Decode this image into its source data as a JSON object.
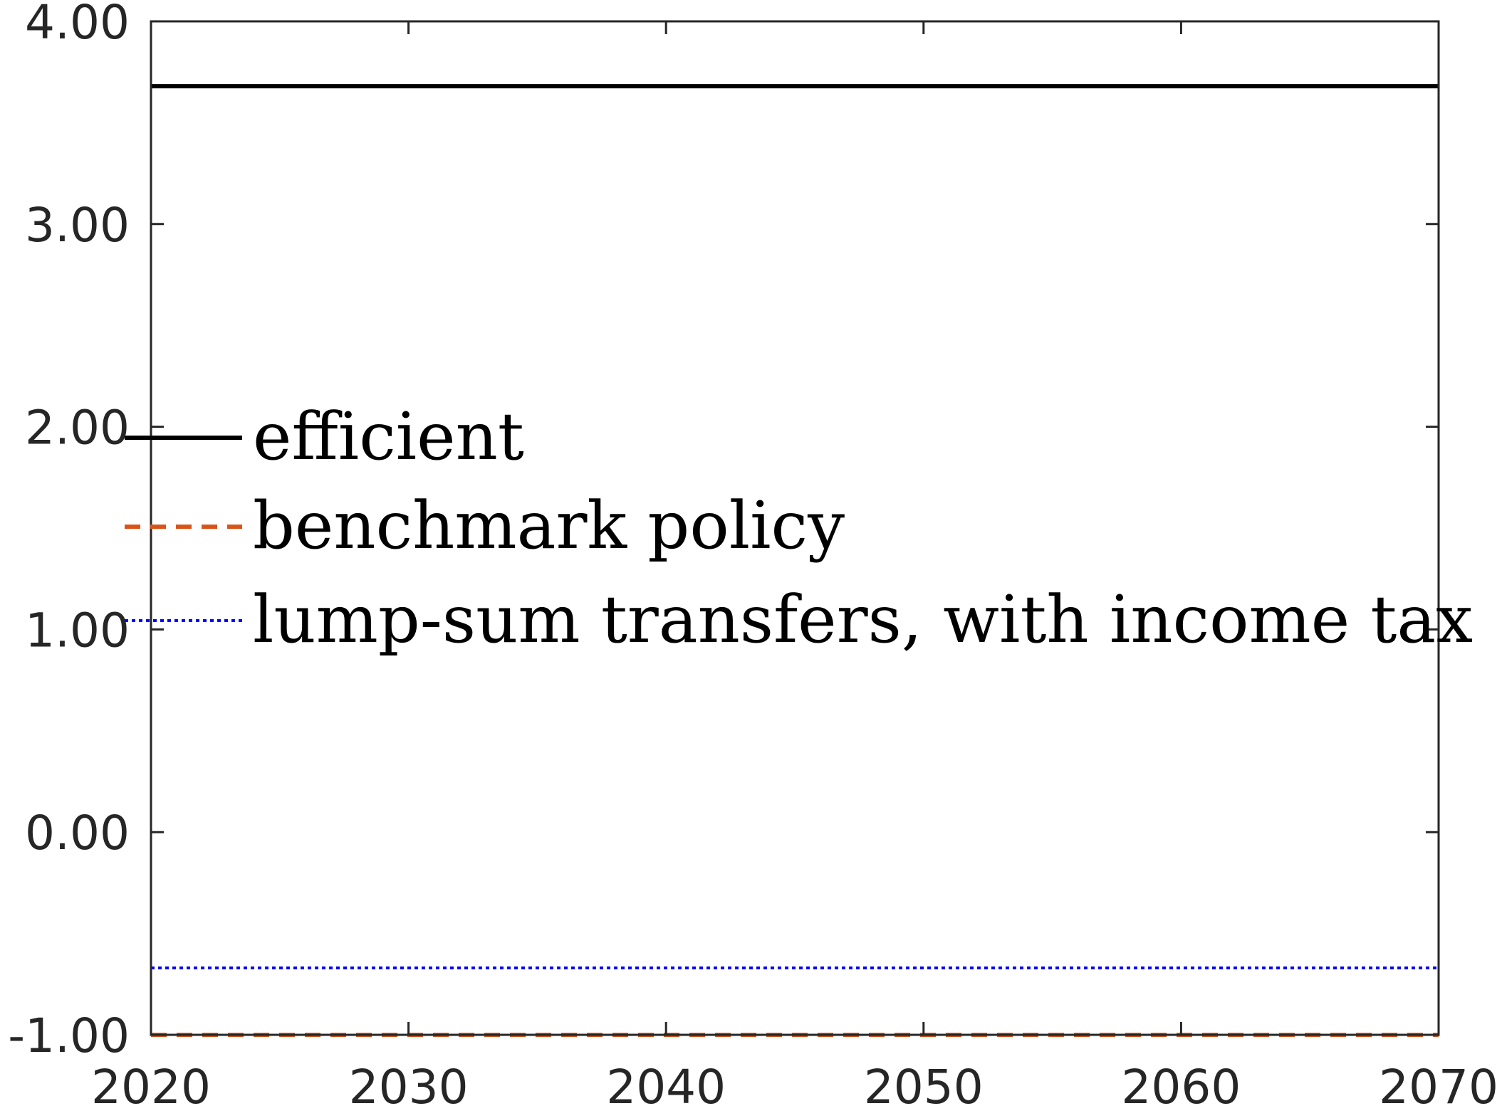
{
  "chart_data": {
    "type": "line",
    "title": "",
    "xlabel": "",
    "ylabel": "",
    "xlim": [
      2020,
      2070
    ],
    "ylim": [
      -1.0,
      4.0
    ],
    "x_ticks": [
      "2020",
      "2030",
      "2040",
      "2050",
      "2060",
      "2070"
    ],
    "y_ticks": [
      "4.00",
      "3.00",
      "2.00",
      "1.00",
      "0.00",
      "-1.00"
    ],
    "grid": false,
    "legend_position": "center-left",
    "series": [
      {
        "name": "efficient",
        "color": "#000000",
        "style": "solid",
        "x": [
          2020,
          2070
        ],
        "y": [
          3.68,
          3.68
        ]
      },
      {
        "name": "benchmark policy",
        "color": "#D95319",
        "style": "dashed",
        "x": [
          2020,
          2070
        ],
        "y": [
          -1.0,
          -1.0
        ]
      },
      {
        "name": "lump-sum transfers, with income tax",
        "color": "#0000FF",
        "style": "dotted",
        "x": [
          2020,
          2070
        ],
        "y": [
          -0.67,
          -0.67
        ]
      }
    ]
  }
}
